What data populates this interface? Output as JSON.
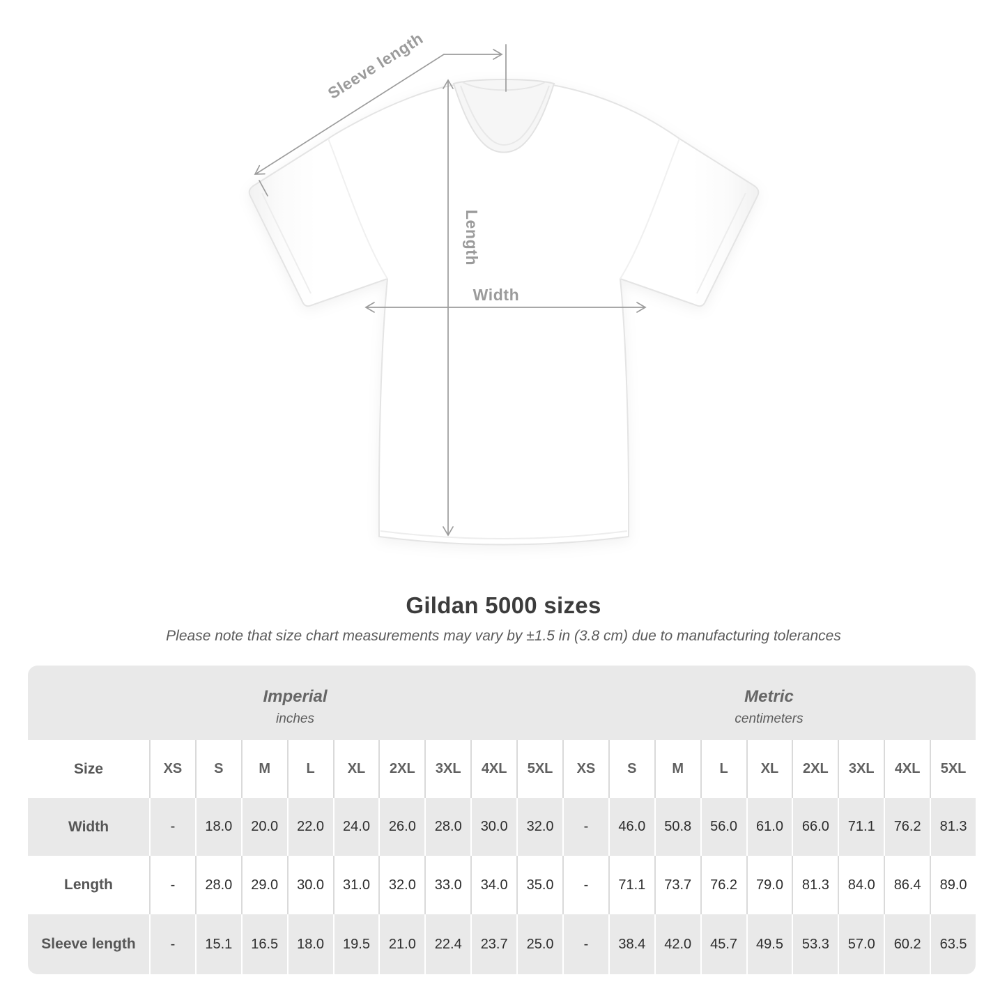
{
  "diagram": {
    "labels": {
      "sleeve_length": "Sleeve length",
      "length": "Length",
      "width": "Width"
    }
  },
  "title": "Gildan 5000 sizes",
  "note": "Please note that size chart measurements may vary by ±1.5 in (3.8 cm) due to manufacturing tolerances",
  "table": {
    "groups": [
      {
        "label": "Imperial",
        "sublabel": "inches"
      },
      {
        "label": "Metric",
        "sublabel": "centimeters"
      }
    ],
    "size_header": "Size",
    "sizes": [
      "XS",
      "S",
      "M",
      "L",
      "XL",
      "2XL",
      "3XL",
      "4XL",
      "5XL"
    ],
    "rows": [
      {
        "label": "Width",
        "imperial": [
          "-",
          "18.0",
          "20.0",
          "22.0",
          "24.0",
          "26.0",
          "28.0",
          "30.0",
          "32.0"
        ],
        "metric": [
          "-",
          "46.0",
          "50.8",
          "56.0",
          "61.0",
          "66.0",
          "71.1",
          "76.2",
          "81.3"
        ]
      },
      {
        "label": "Length",
        "imperial": [
          "-",
          "28.0",
          "29.0",
          "30.0",
          "31.0",
          "32.0",
          "33.0",
          "34.0",
          "35.0"
        ],
        "metric": [
          "-",
          "71.1",
          "73.7",
          "76.2",
          "79.0",
          "81.3",
          "84.0",
          "86.4",
          "89.0"
        ]
      },
      {
        "label": "Sleeve length",
        "imperial": [
          "-",
          "15.1",
          "16.5",
          "18.0",
          "19.5",
          "21.0",
          "22.4",
          "23.7",
          "25.0"
        ],
        "metric": [
          "-",
          "38.4",
          "42.0",
          "45.7",
          "49.5",
          "53.3",
          "57.0",
          "60.2",
          "63.5"
        ]
      }
    ]
  },
  "colors": {
    "band_gray": "#e9e9e9",
    "row_gray": "#e9e9e9",
    "separator_on_white": "#dadada",
    "separator_on_gray": "#ffffff",
    "annotation_gray": "#9b9b9b",
    "title_text": "#3c3c3c",
    "value_text": "#2d2d2d",
    "header_text": "#606060"
  },
  "chart_data": {
    "type": "table",
    "title": "Gildan 5000 sizes",
    "note": "Please note that size chart measurements may vary by ±1.5 in (3.8 cm) due to manufacturing tolerances",
    "column_groups": [
      "Imperial (inches)",
      "Metric (centimeters)"
    ],
    "columns": [
      "XS",
      "S",
      "M",
      "L",
      "XL",
      "2XL",
      "3XL",
      "4XL",
      "5XL"
    ],
    "rows": [
      {
        "measurement": "Width",
        "imperial_inches": [
          null,
          18.0,
          20.0,
          22.0,
          24.0,
          26.0,
          28.0,
          30.0,
          32.0
        ],
        "metric_cm": [
          null,
          46.0,
          50.8,
          56.0,
          61.0,
          66.0,
          71.1,
          76.2,
          81.3
        ]
      },
      {
        "measurement": "Length",
        "imperial_inches": [
          null,
          28.0,
          29.0,
          30.0,
          31.0,
          32.0,
          33.0,
          34.0,
          35.0
        ],
        "metric_cm": [
          null,
          71.1,
          73.7,
          76.2,
          79.0,
          81.3,
          84.0,
          86.4,
          89.0
        ]
      },
      {
        "measurement": "Sleeve length",
        "imperial_inches": [
          null,
          15.1,
          16.5,
          18.0,
          19.5,
          21.0,
          22.4,
          23.7,
          25.0
        ],
        "metric_cm": [
          null,
          38.4,
          42.0,
          45.7,
          49.5,
          53.3,
          57.0,
          60.2,
          63.5
        ]
      }
    ],
    "legend_position": "none",
    "grid": false
  }
}
